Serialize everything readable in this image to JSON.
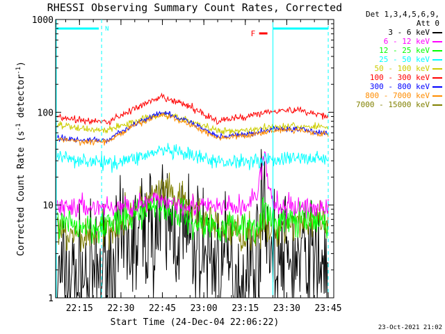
{
  "chart_data": {
    "type": "line",
    "title": "RHESSI Observing Summary Count Rates, Corrected",
    "xlabel": "Start Time (24-Dec-04 22:06:22)",
    "ylabel_main": "Corrected Count Rate (s",
    "ylabel_sup1": "-1",
    "ylabel_mid": " detector",
    "ylabel_sup2": "-1",
    "ylabel_end": ")",
    "yscale": "log",
    "ylim": [
      1,
      1000
    ],
    "xlim": [
      "22:06:22",
      "23:47:00"
    ],
    "x_ticks": [
      "22:15",
      "22:30",
      "22:45",
      "23:00",
      "23:15",
      "23:30",
      "23:45"
    ],
    "y_ticks": [
      "1",
      "10",
      "100",
      "1000"
    ],
    "detectors_label": "Det 1,3,4,5,6,9,",
    "attenuator_label": "Att 0",
    "annotations": {
      "night_marker": "N",
      "flare_marker": "F",
      "night_end": "22:23",
      "flare_time": "23:22",
      "flare_bar_range": [
        "23:20",
        "23:23"
      ],
      "saa_start": "23:25",
      "night_bar_range": [
        "22:06:22",
        "22:22"
      ],
      "day_bar_range": [
        "23:25",
        "23:45"
      ]
    },
    "series": [
      {
        "name": "3 - 6 keV",
        "color": "#000000",
        "noise": 0.35,
        "points": [
          [
            "22:07",
            1.6
          ],
          [
            "22:12",
            1.6
          ],
          [
            "22:20",
            1.6
          ],
          [
            "22:25",
            2.2
          ],
          [
            "22:30",
            3.0
          ],
          [
            "22:35",
            4.0
          ],
          [
            "22:40",
            5.5
          ],
          [
            "22:45",
            6.5
          ],
          [
            "22:50",
            5.5
          ],
          [
            "22:55",
            4.0
          ],
          [
            "23:00",
            3.0
          ],
          [
            "23:05",
            2.5
          ],
          [
            "23:10",
            2.0
          ],
          [
            "23:14",
            1.4
          ],
          [
            "23:18",
            2.3
          ],
          [
            "23:20",
            3.5
          ],
          [
            "23:22",
            15
          ],
          [
            "23:23",
            7.0
          ],
          [
            "23:25",
            2.3
          ],
          [
            "23:30",
            2.5
          ],
          [
            "23:35",
            2.4
          ],
          [
            "23:40",
            2.4
          ],
          [
            "23:45",
            2.5
          ]
        ]
      },
      {
        "name": "6 - 12 keV",
        "color": "#ff00ff",
        "noise": 0.06,
        "points": [
          [
            "22:07",
            9.5
          ],
          [
            "22:20",
            9.5
          ],
          [
            "22:30",
            9.5
          ],
          [
            "22:40",
            10.5
          ],
          [
            "22:45",
            11.5
          ],
          [
            "22:50",
            10.5
          ],
          [
            "23:00",
            9.5
          ],
          [
            "23:10",
            9.5
          ],
          [
            "23:15",
            9.5
          ],
          [
            "23:19",
            13
          ],
          [
            "23:21",
            25
          ],
          [
            "23:22",
            32
          ],
          [
            "23:23",
            20
          ],
          [
            "23:25",
            10
          ],
          [
            "23:30",
            9.5
          ],
          [
            "23:40",
            9.5
          ],
          [
            "23:45",
            9.5
          ]
        ]
      },
      {
        "name": "12 - 25 keV",
        "color": "#00ff00",
        "noise": 0.09,
        "points": [
          [
            "22:07",
            6.0
          ],
          [
            "22:20",
            6.0
          ],
          [
            "22:30",
            6.5
          ],
          [
            "22:35",
            8.0
          ],
          [
            "22:40",
            9.5
          ],
          [
            "22:45",
            10.0
          ],
          [
            "22:50",
            8.5
          ],
          [
            "22:55",
            7.0
          ],
          [
            "23:00",
            6.0
          ],
          [
            "23:10",
            6.0
          ],
          [
            "23:18",
            6.0
          ],
          [
            "23:20",
            7.0
          ],
          [
            "23:22",
            9.0
          ],
          [
            "23:24",
            6.5
          ],
          [
            "23:30",
            7.0
          ],
          [
            "23:40",
            6.5
          ],
          [
            "23:45",
            6.5
          ]
        ]
      },
      {
        "name": "25 - 50 keV",
        "color": "#00ffff",
        "noise": 0.04,
        "points": [
          [
            "22:07",
            33
          ],
          [
            "22:15",
            31
          ],
          [
            "22:25",
            28
          ],
          [
            "22:35",
            32
          ],
          [
            "22:45",
            39
          ],
          [
            "22:55",
            34
          ],
          [
            "23:05",
            29
          ],
          [
            "23:15",
            30
          ],
          [
            "23:25",
            31
          ],
          [
            "23:35",
            32
          ],
          [
            "23:45",
            32
          ]
        ]
      },
      {
        "name": "50 - 100 keV",
        "color": "#cccc00",
        "noise": 0.02,
        "points": [
          [
            "22:07",
            73
          ],
          [
            "22:15",
            67
          ],
          [
            "22:25",
            64
          ],
          [
            "22:35",
            80
          ],
          [
            "22:45",
            97
          ],
          [
            "22:55",
            80
          ],
          [
            "23:05",
            63
          ],
          [
            "23:15",
            64
          ],
          [
            "23:25",
            70
          ],
          [
            "23:35",
            70
          ],
          [
            "23:45",
            70
          ]
        ]
      },
      {
        "name": "100 - 300 keV",
        "color": "#ff0000",
        "noise": 0.02,
        "points": [
          [
            "22:07",
            90
          ],
          [
            "22:15",
            82
          ],
          [
            "22:25",
            78
          ],
          [
            "22:35",
            110
          ],
          [
            "22:45",
            145
          ],
          [
            "22:55",
            115
          ],
          [
            "23:05",
            80
          ],
          [
            "23:15",
            90
          ],
          [
            "23:25",
            105
          ],
          [
            "23:35",
            105
          ],
          [
            "23:45",
            90
          ]
        ]
      },
      {
        "name": "300 - 800 keV",
        "color": "#0000ff",
        "noise": 0.015,
        "points": [
          [
            "22:07",
            54
          ],
          [
            "22:15",
            50
          ],
          [
            "22:25",
            50
          ],
          [
            "22:35",
            75
          ],
          [
            "22:45",
            100
          ],
          [
            "22:55",
            78
          ],
          [
            "23:05",
            55
          ],
          [
            "23:15",
            57
          ],
          [
            "23:25",
            66
          ],
          [
            "23:35",
            66
          ],
          [
            "23:45",
            58
          ]
        ]
      },
      {
        "name": "800 - 7000 keV",
        "color": "#ff8c00",
        "noise": 0.015,
        "points": [
          [
            "22:07",
            52
          ],
          [
            "22:15",
            48
          ],
          [
            "22:25",
            48
          ],
          [
            "22:35",
            72
          ],
          [
            "22:45",
            95
          ],
          [
            "22:55",
            74
          ],
          [
            "23:05",
            53
          ],
          [
            "23:15",
            55
          ],
          [
            "23:25",
            64
          ],
          [
            "23:35",
            64
          ],
          [
            "23:45",
            57
          ]
        ]
      },
      {
        "name": "7000 - 15000 keV",
        "color": "#808000",
        "noise": 0.1,
        "points": [
          [
            "22:07",
            4.8
          ],
          [
            "22:15",
            4.5
          ],
          [
            "22:25",
            5.5
          ],
          [
            "22:35",
            9.0
          ],
          [
            "22:45",
            14
          ],
          [
            "22:55",
            9.5
          ],
          [
            "23:05",
            5.5
          ],
          [
            "23:15",
            5.0
          ],
          [
            "23:25",
            5.5
          ],
          [
            "23:35",
            7.0
          ],
          [
            "23:45",
            6.0
          ]
        ]
      }
    ]
  },
  "footer_timestamp": "23-Oct-2021 21:02"
}
